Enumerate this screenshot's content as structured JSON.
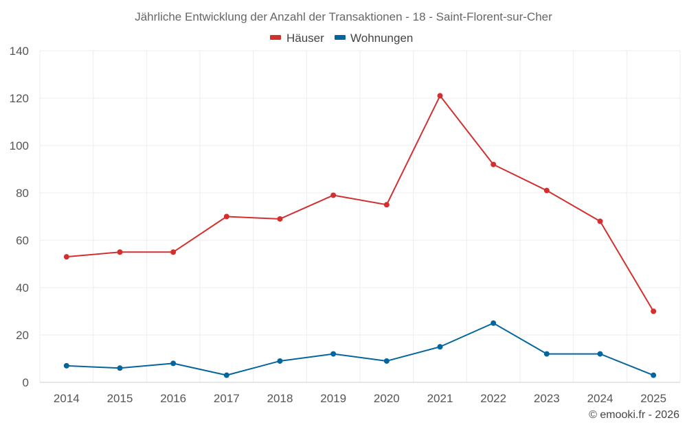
{
  "chart_data": {
    "type": "line",
    "title": "Jährliche Entwicklung der Anzahl der Transaktionen - 18 - Saint-Florent-sur-Cher",
    "categories": [
      "2014",
      "2015",
      "2016",
      "2017",
      "2018",
      "2019",
      "2020",
      "2021",
      "2022",
      "2023",
      "2024",
      "2025"
    ],
    "series": [
      {
        "name": "Häuser",
        "color": "#d32f2f",
        "values": [
          53,
          55,
          55,
          70,
          69,
          79,
          75,
          121,
          92,
          81,
          68,
          30
        ]
      },
      {
        "name": "Wohnungen",
        "color": "#02659e",
        "values": [
          7,
          6,
          8,
          3,
          9,
          12,
          9,
          15,
          25,
          12,
          12,
          3
        ]
      }
    ],
    "xlabel": "",
    "ylabel": "",
    "ylim": [
      0,
      140
    ],
    "yticks": [
      0,
      20,
      40,
      60,
      80,
      100,
      120,
      140
    ],
    "grid": true,
    "legend_position": "top-center"
  },
  "credit": "© emooki.fr - 2026"
}
